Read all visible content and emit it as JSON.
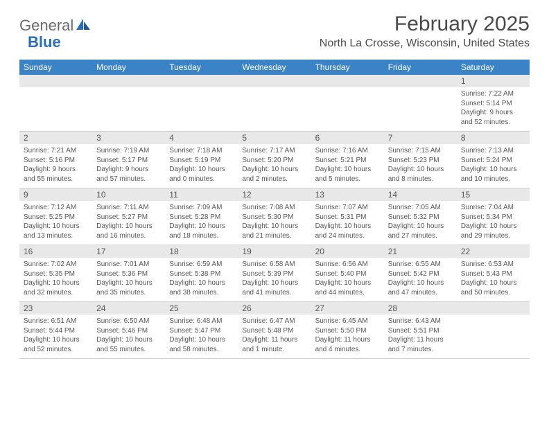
{
  "colors": {
    "header_bg": "#3b83c7",
    "header_text": "#ffffff",
    "daynum_bg": "#e8e8e8",
    "body_text": "#555555",
    "page_bg": "#ffffff",
    "logo_gray": "#6a6a6a",
    "logo_blue": "#2a6fb5",
    "border": "#d0d0d0"
  },
  "brand": {
    "part1": "General",
    "part2": "Blue"
  },
  "title": "February 2025",
  "location": "North La Crosse, Wisconsin, United States",
  "weekdays": [
    "Sunday",
    "Monday",
    "Tuesday",
    "Wednesday",
    "Thursday",
    "Friday",
    "Saturday"
  ],
  "weeks": [
    [
      {
        "num": "",
        "sunrise": "",
        "sunset": "",
        "daylight": ""
      },
      {
        "num": "",
        "sunrise": "",
        "sunset": "",
        "daylight": ""
      },
      {
        "num": "",
        "sunrise": "",
        "sunset": "",
        "daylight": ""
      },
      {
        "num": "",
        "sunrise": "",
        "sunset": "",
        "daylight": ""
      },
      {
        "num": "",
        "sunrise": "",
        "sunset": "",
        "daylight": ""
      },
      {
        "num": "",
        "sunrise": "",
        "sunset": "",
        "daylight": ""
      },
      {
        "num": "1",
        "sunrise": "Sunrise: 7:22 AM",
        "sunset": "Sunset: 5:14 PM",
        "daylight": "Daylight: 9 hours and 52 minutes."
      }
    ],
    [
      {
        "num": "2",
        "sunrise": "Sunrise: 7:21 AM",
        "sunset": "Sunset: 5:16 PM",
        "daylight": "Daylight: 9 hours and 55 minutes."
      },
      {
        "num": "3",
        "sunrise": "Sunrise: 7:19 AM",
        "sunset": "Sunset: 5:17 PM",
        "daylight": "Daylight: 9 hours and 57 minutes."
      },
      {
        "num": "4",
        "sunrise": "Sunrise: 7:18 AM",
        "sunset": "Sunset: 5:19 PM",
        "daylight": "Daylight: 10 hours and 0 minutes."
      },
      {
        "num": "5",
        "sunrise": "Sunrise: 7:17 AM",
        "sunset": "Sunset: 5:20 PM",
        "daylight": "Daylight: 10 hours and 2 minutes."
      },
      {
        "num": "6",
        "sunrise": "Sunrise: 7:16 AM",
        "sunset": "Sunset: 5:21 PM",
        "daylight": "Daylight: 10 hours and 5 minutes."
      },
      {
        "num": "7",
        "sunrise": "Sunrise: 7:15 AM",
        "sunset": "Sunset: 5:23 PM",
        "daylight": "Daylight: 10 hours and 8 minutes."
      },
      {
        "num": "8",
        "sunrise": "Sunrise: 7:13 AM",
        "sunset": "Sunset: 5:24 PM",
        "daylight": "Daylight: 10 hours and 10 minutes."
      }
    ],
    [
      {
        "num": "9",
        "sunrise": "Sunrise: 7:12 AM",
        "sunset": "Sunset: 5:25 PM",
        "daylight": "Daylight: 10 hours and 13 minutes."
      },
      {
        "num": "10",
        "sunrise": "Sunrise: 7:11 AM",
        "sunset": "Sunset: 5:27 PM",
        "daylight": "Daylight: 10 hours and 16 minutes."
      },
      {
        "num": "11",
        "sunrise": "Sunrise: 7:09 AM",
        "sunset": "Sunset: 5:28 PM",
        "daylight": "Daylight: 10 hours and 18 minutes."
      },
      {
        "num": "12",
        "sunrise": "Sunrise: 7:08 AM",
        "sunset": "Sunset: 5:30 PM",
        "daylight": "Daylight: 10 hours and 21 minutes."
      },
      {
        "num": "13",
        "sunrise": "Sunrise: 7:07 AM",
        "sunset": "Sunset: 5:31 PM",
        "daylight": "Daylight: 10 hours and 24 minutes."
      },
      {
        "num": "14",
        "sunrise": "Sunrise: 7:05 AM",
        "sunset": "Sunset: 5:32 PM",
        "daylight": "Daylight: 10 hours and 27 minutes."
      },
      {
        "num": "15",
        "sunrise": "Sunrise: 7:04 AM",
        "sunset": "Sunset: 5:34 PM",
        "daylight": "Daylight: 10 hours and 29 minutes."
      }
    ],
    [
      {
        "num": "16",
        "sunrise": "Sunrise: 7:02 AM",
        "sunset": "Sunset: 5:35 PM",
        "daylight": "Daylight: 10 hours and 32 minutes."
      },
      {
        "num": "17",
        "sunrise": "Sunrise: 7:01 AM",
        "sunset": "Sunset: 5:36 PM",
        "daylight": "Daylight: 10 hours and 35 minutes."
      },
      {
        "num": "18",
        "sunrise": "Sunrise: 6:59 AM",
        "sunset": "Sunset: 5:38 PM",
        "daylight": "Daylight: 10 hours and 38 minutes."
      },
      {
        "num": "19",
        "sunrise": "Sunrise: 6:58 AM",
        "sunset": "Sunset: 5:39 PM",
        "daylight": "Daylight: 10 hours and 41 minutes."
      },
      {
        "num": "20",
        "sunrise": "Sunrise: 6:56 AM",
        "sunset": "Sunset: 5:40 PM",
        "daylight": "Daylight: 10 hours and 44 minutes."
      },
      {
        "num": "21",
        "sunrise": "Sunrise: 6:55 AM",
        "sunset": "Sunset: 5:42 PM",
        "daylight": "Daylight: 10 hours and 47 minutes."
      },
      {
        "num": "22",
        "sunrise": "Sunrise: 6:53 AM",
        "sunset": "Sunset: 5:43 PM",
        "daylight": "Daylight: 10 hours and 50 minutes."
      }
    ],
    [
      {
        "num": "23",
        "sunrise": "Sunrise: 6:51 AM",
        "sunset": "Sunset: 5:44 PM",
        "daylight": "Daylight: 10 hours and 52 minutes."
      },
      {
        "num": "24",
        "sunrise": "Sunrise: 6:50 AM",
        "sunset": "Sunset: 5:46 PM",
        "daylight": "Daylight: 10 hours and 55 minutes."
      },
      {
        "num": "25",
        "sunrise": "Sunrise: 6:48 AM",
        "sunset": "Sunset: 5:47 PM",
        "daylight": "Daylight: 10 hours and 58 minutes."
      },
      {
        "num": "26",
        "sunrise": "Sunrise: 6:47 AM",
        "sunset": "Sunset: 5:48 PM",
        "daylight": "Daylight: 11 hours and 1 minute."
      },
      {
        "num": "27",
        "sunrise": "Sunrise: 6:45 AM",
        "sunset": "Sunset: 5:50 PM",
        "daylight": "Daylight: 11 hours and 4 minutes."
      },
      {
        "num": "28",
        "sunrise": "Sunrise: 6:43 AM",
        "sunset": "Sunset: 5:51 PM",
        "daylight": "Daylight: 11 hours and 7 minutes."
      },
      {
        "num": "",
        "sunrise": "",
        "sunset": "",
        "daylight": ""
      }
    ]
  ]
}
